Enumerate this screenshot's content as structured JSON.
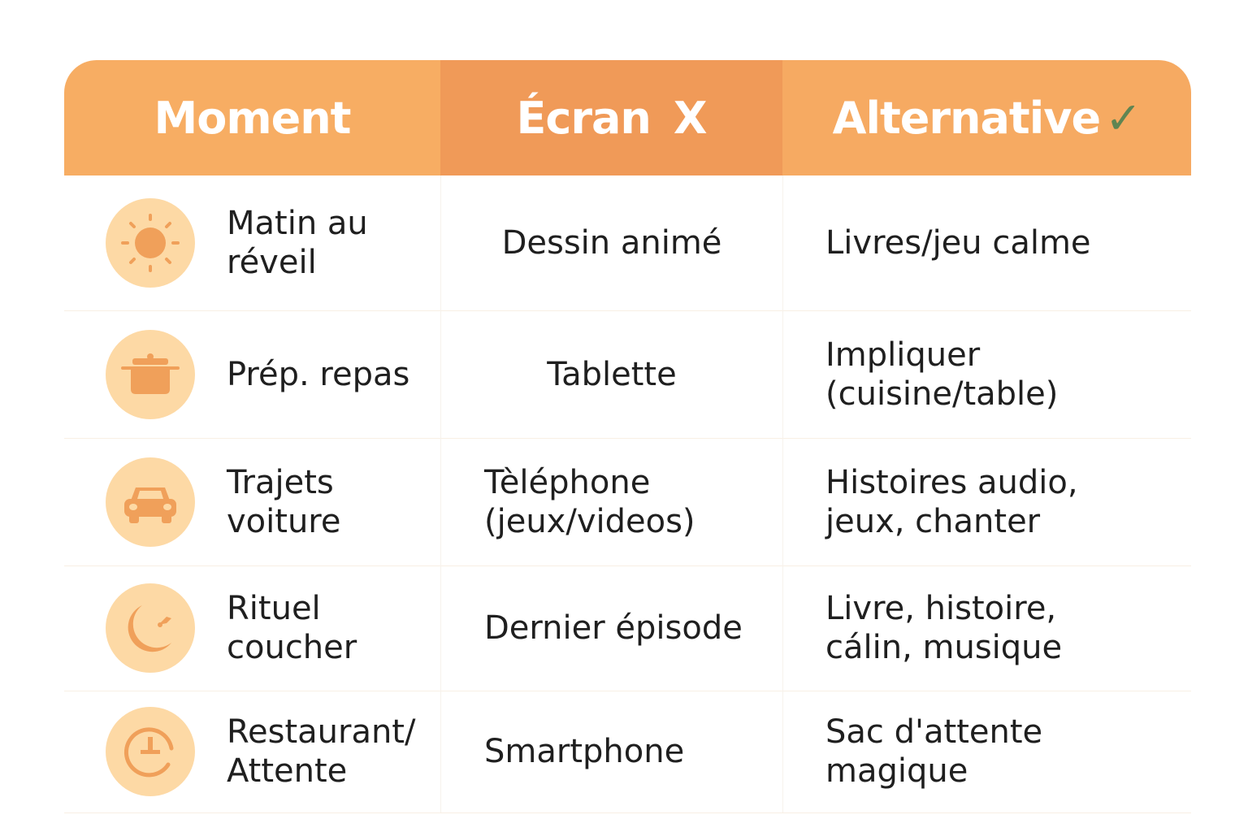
{
  "header": {
    "moment": "Moment",
    "screen": "Écran",
    "screen_mark": "X",
    "alternative": "Alternative",
    "alternative_mark": "✓"
  },
  "colors": {
    "header": "#f7ad63",
    "header_middle": "#f09a58",
    "icon_bg": "#fdd9a5",
    "icon": "#f0a05a",
    "check": "#5f8552"
  },
  "rows": [
    {
      "icon": "sun-icon",
      "moment": "Matin au\nréveil",
      "screen": "Dessin animé",
      "alternative": "Livres/jeu calme"
    },
    {
      "icon": "pot-icon",
      "moment": "Prép. repas",
      "screen": "Tablette",
      "alternative": "Impliquer\n(cuisine/table)"
    },
    {
      "icon": "car-icon",
      "moment": "Trajets\nvoiture",
      "screen": "Tèléphone\n(jeux/videos)",
      "alternative": "Histoires audio,\njeux, chanter"
    },
    {
      "icon": "moon-icon",
      "moment": "Rituel\ncoucher",
      "screen": "Dernier épisode",
      "alternative": "Livre, histoire,\ncálin, musique"
    },
    {
      "icon": "clock-icon",
      "moment": "Restaurant/\nAttente",
      "screen": "Smartphone",
      "alternative": "Sac d'attente\nmagique"
    }
  ]
}
